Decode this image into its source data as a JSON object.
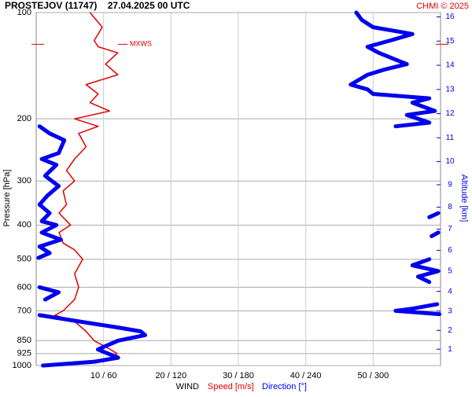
{
  "chart_data": {
    "type": "line",
    "title": "PROSTEJOV (11747)    27.04.2025 00 UTC",
    "credit": "CHMI © 2025",
    "ylabel": "Pressure [hPa]",
    "y2label": "Altitude [km]",
    "xlabel": "WIND",
    "log_y": true,
    "grid": true,
    "ylim": [
      1000,
      100
    ],
    "yticks": [
      100,
      200,
      300,
      400,
      500,
      600,
      700,
      850,
      925,
      1000
    ],
    "xlim": [
      0,
      60
    ],
    "x2lim": [
      0,
      360
    ],
    "xticks": [
      {
        "value": 10,
        "label": "10 / 60"
      },
      {
        "value": 20,
        "label": "20 / 120"
      },
      {
        "value": 30,
        "label": "30 / 180"
      },
      {
        "value": 40,
        "label": "40 / 240"
      },
      {
        "value": 50,
        "label": "50 / 300"
      }
    ],
    "y2ticks": [
      1,
      2,
      3,
      4,
      5,
      6,
      7,
      8,
      9,
      10,
      11,
      12,
      13,
      14,
      15,
      16
    ],
    "annotation": {
      "text": "MXWS",
      "pressure": 123
    },
    "series": [
      {
        "name": "Speed [m/s]",
        "color": "#e00000",
        "pressure": [
          1000,
          975,
          950,
          925,
          900,
          850,
          800,
          750,
          720,
          700,
          650,
          600,
          550,
          500,
          470,
          450,
          420,
          400,
          370,
          350,
          320,
          300,
          280,
          260,
          240,
          220,
          210,
          200,
          190,
          180,
          170,
          160,
          150,
          140,
          130,
          125,
          120,
          110,
          100
        ],
        "values": [
          4,
          8.6,
          11.5,
          12,
          11,
          8.6,
          7.4,
          5.7,
          2.8,
          4,
          5.7,
          6.3,
          5.7,
          6.9,
          5.7,
          4,
          3.4,
          5.1,
          3.4,
          4.5,
          4,
          5.7,
          4.5,
          5.7,
          7.4,
          6.3,
          9.2,
          5.7,
          10.9,
          8,
          9.2,
          7.4,
          12.1,
          10.3,
          12.1,
          9.2,
          8.6,
          9.8,
          8
        ]
      },
      {
        "name": "Direction [°]",
        "color": "#0000ee",
        "axis": "x2",
        "pressure": [
          1000,
          975,
          950,
          900,
          850,
          820,
          800,
          780,
          750,
          720,
          null,
          715,
          700,
          690,
          670,
          null,
          650,
          620,
          600,
          null,
          580,
          560,
          540,
          520,
          500,
          null,
          495,
          480,
          460,
          440,
          420,
          400,
          390,
          370,
          350,
          330,
          310,
          300,
          290,
          270,
          260,
          250,
          230,
          220,
          210,
          null,
          430,
          420,
          null,
          380,
          370,
          null,
          210,
          205,
          195,
          190,
          180,
          175,
          170,
          165,
          160,
          150,
          145,
          140,
          130,
          125,
          120,
          115,
          110,
          105,
          100
        ],
        "values": [
          6,
          52,
          73,
          55,
          73,
          97,
          93,
          73,
          38,
          3,
          null,
          359,
          320,
          335,
          357,
          null,
          8,
          20,
          3,
          null,
          350,
          340,
          358,
          335,
          350,
          null,
          2,
          12,
          3,
          22,
          5,
          18,
          5,
          12,
          3,
          10,
          20,
          14,
          8,
          18,
          5,
          20,
          25,
          12,
          3,
          null,
          352,
          358,
          null,
          350,
          358,
          null,
          320,
          350,
          330,
          355,
          335,
          350,
          300,
          295,
          280,
          295,
          310,
          330,
          305,
          295,
          315,
          335,
          300,
          290,
          285
        ]
      }
    ]
  }
}
